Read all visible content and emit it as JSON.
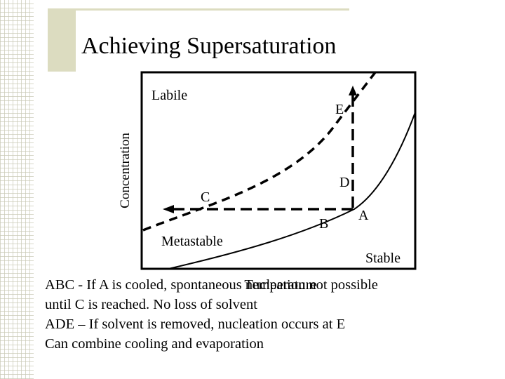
{
  "slide": {
    "title": "Achieving Supersaturation",
    "accent_color": "#dcdcc0"
  },
  "diagram": {
    "y_axis_label": "Concentration",
    "x_axis_label": "Temperature",
    "regions": {
      "labile": "Labile",
      "metastable": "Metastable",
      "stable": "Stable"
    },
    "points": {
      "a": "A",
      "b": "B",
      "c": "C",
      "d": "D",
      "e": "E"
    },
    "paths": {
      "cooling": "A → B → C",
      "evaporation": "A → D → E"
    },
    "curves": {
      "solubility": "solid curve",
      "supersolubility": "dashed curve"
    }
  },
  "footer": {
    "line1": "ABC - If A is cooled, spontaneous nucleation not possible",
    "line2": "until C is reached.  No loss of solvent",
    "line3": "ADE – If solvent is removed, nucleation occurs at E",
    "line4": "Can combine cooling and evaporation"
  }
}
